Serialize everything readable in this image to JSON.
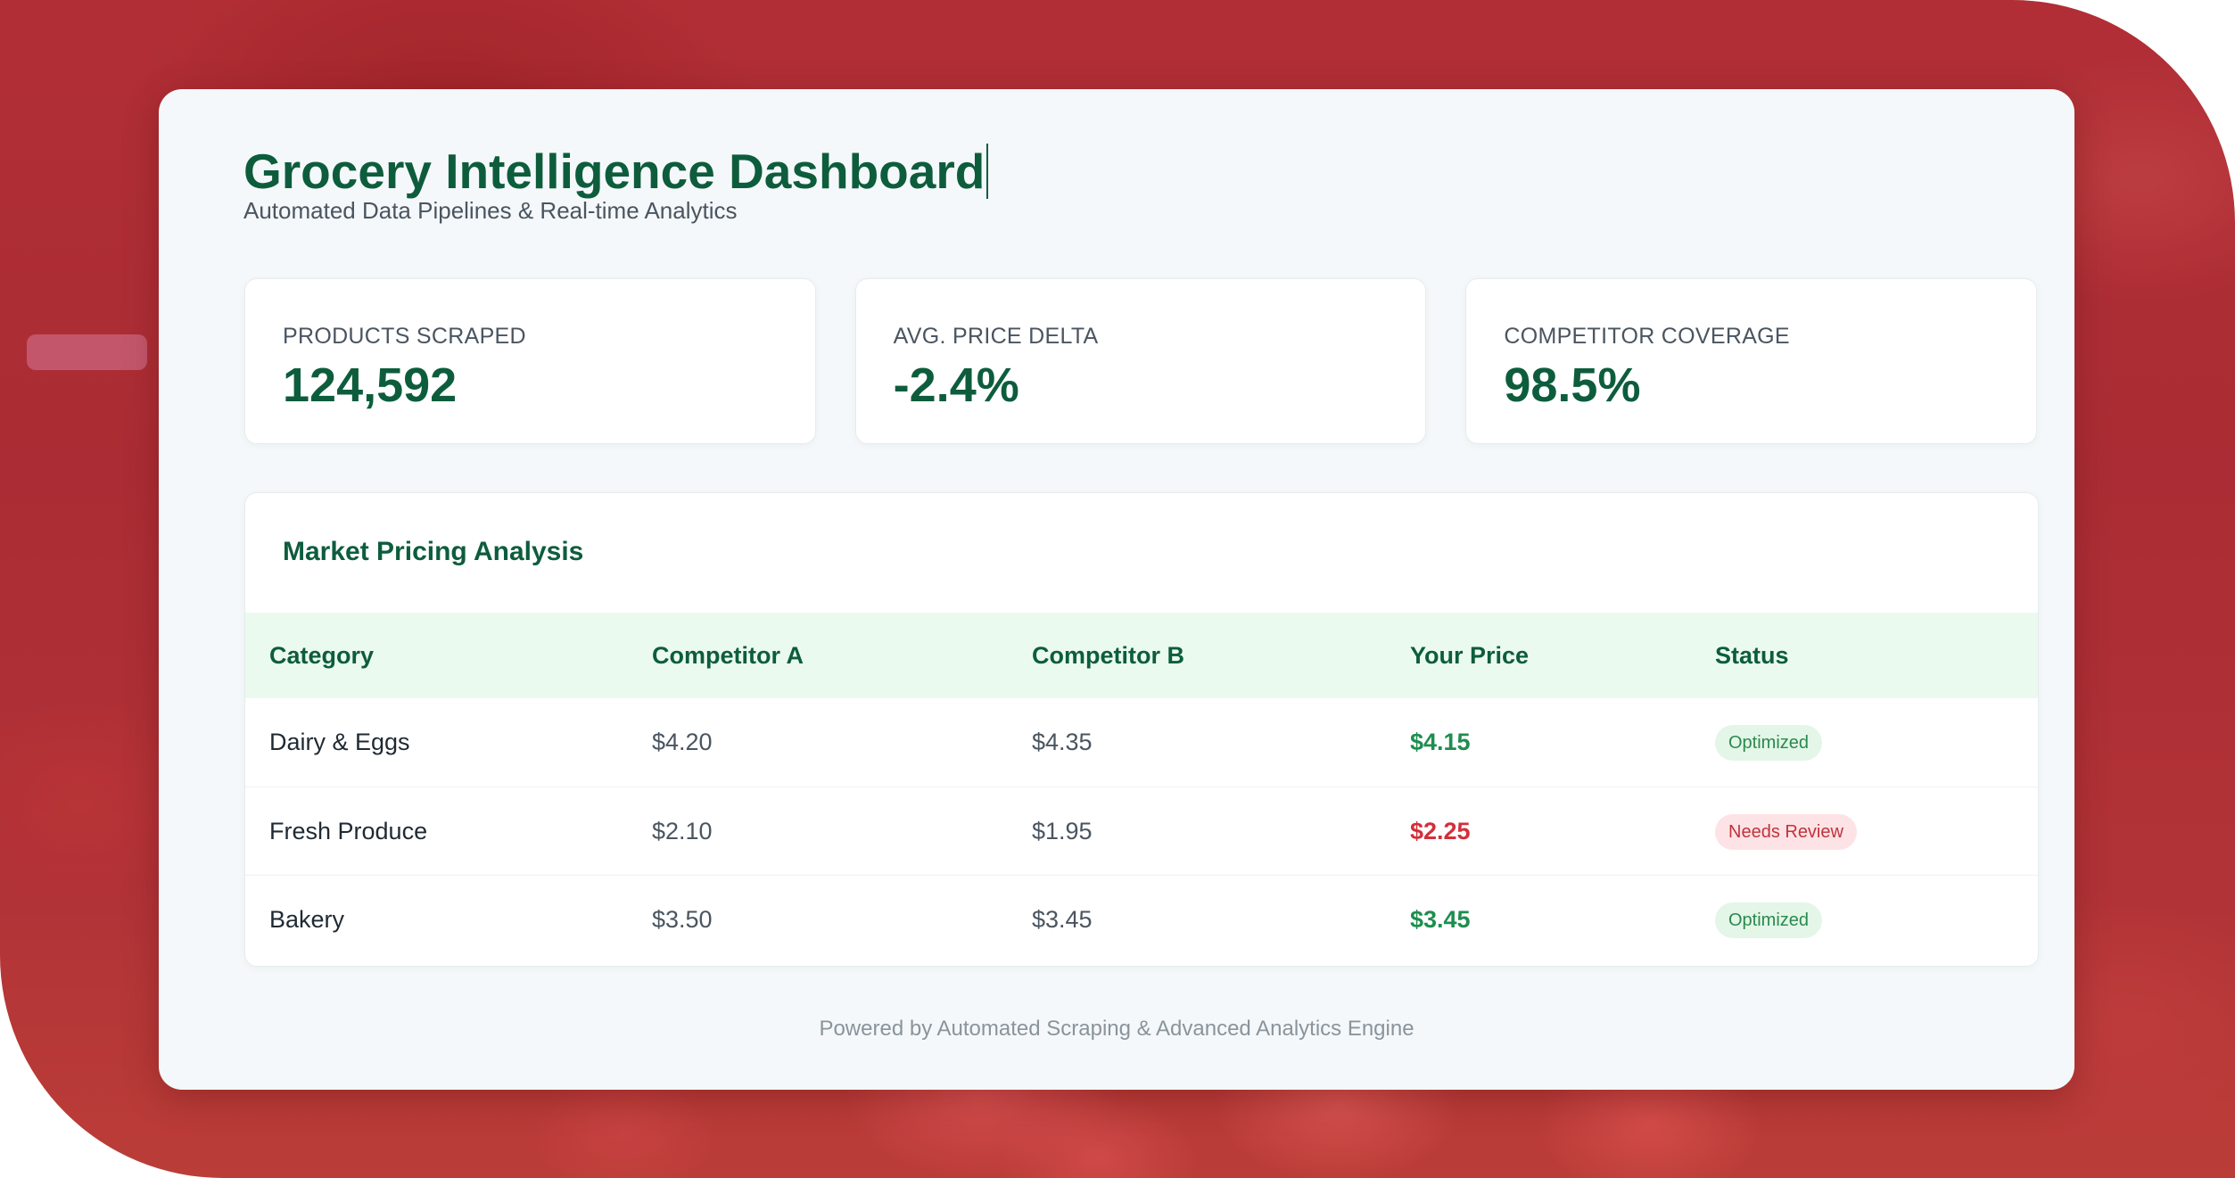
{
  "header": {
    "title": "Grocery Intelligence Dashboard",
    "subtitle": "Automated Data Pipelines & Real-time Analytics"
  },
  "kpis": [
    {
      "label": "PRODUCTS SCRAPED",
      "value": "124,592"
    },
    {
      "label": "AVG. PRICE DELTA",
      "value": "-2.4%"
    },
    {
      "label": "COMPETITOR COVERAGE",
      "value": "98.5%"
    }
  ],
  "table": {
    "title": "Market Pricing Analysis",
    "columns": [
      "Category",
      "Competitor A",
      "Competitor B",
      "Your Price",
      "Status"
    ],
    "rows": [
      {
        "category": "Dairy & Eggs",
        "competitor_a": "$4.20",
        "competitor_b": "$4.35",
        "your_price": "$4.15",
        "status": "Optimized"
      },
      {
        "category": "Fresh Produce",
        "competitor_a": "$2.10",
        "competitor_b": "$1.95",
        "your_price": "$2.25",
        "status": "Needs Review"
      },
      {
        "category": "Bakery",
        "competitor_a": "$3.50",
        "competitor_b": "$3.45",
        "your_price": "$3.45",
        "status": "Optimized"
      }
    ]
  },
  "footer": {
    "text": "Powered by Automated Scraping & Advanced Analytics Engine"
  },
  "colors": {
    "brand_green": "#0d5d3d",
    "good_price": "#1e8e4e",
    "bad_price": "#d32f3a",
    "optimized_badge_bg": "#e3f6e8",
    "optimized_badge_text": "#2a8a4c",
    "review_badge_bg": "#fde3e5",
    "review_badge_text": "#c0333d"
  }
}
